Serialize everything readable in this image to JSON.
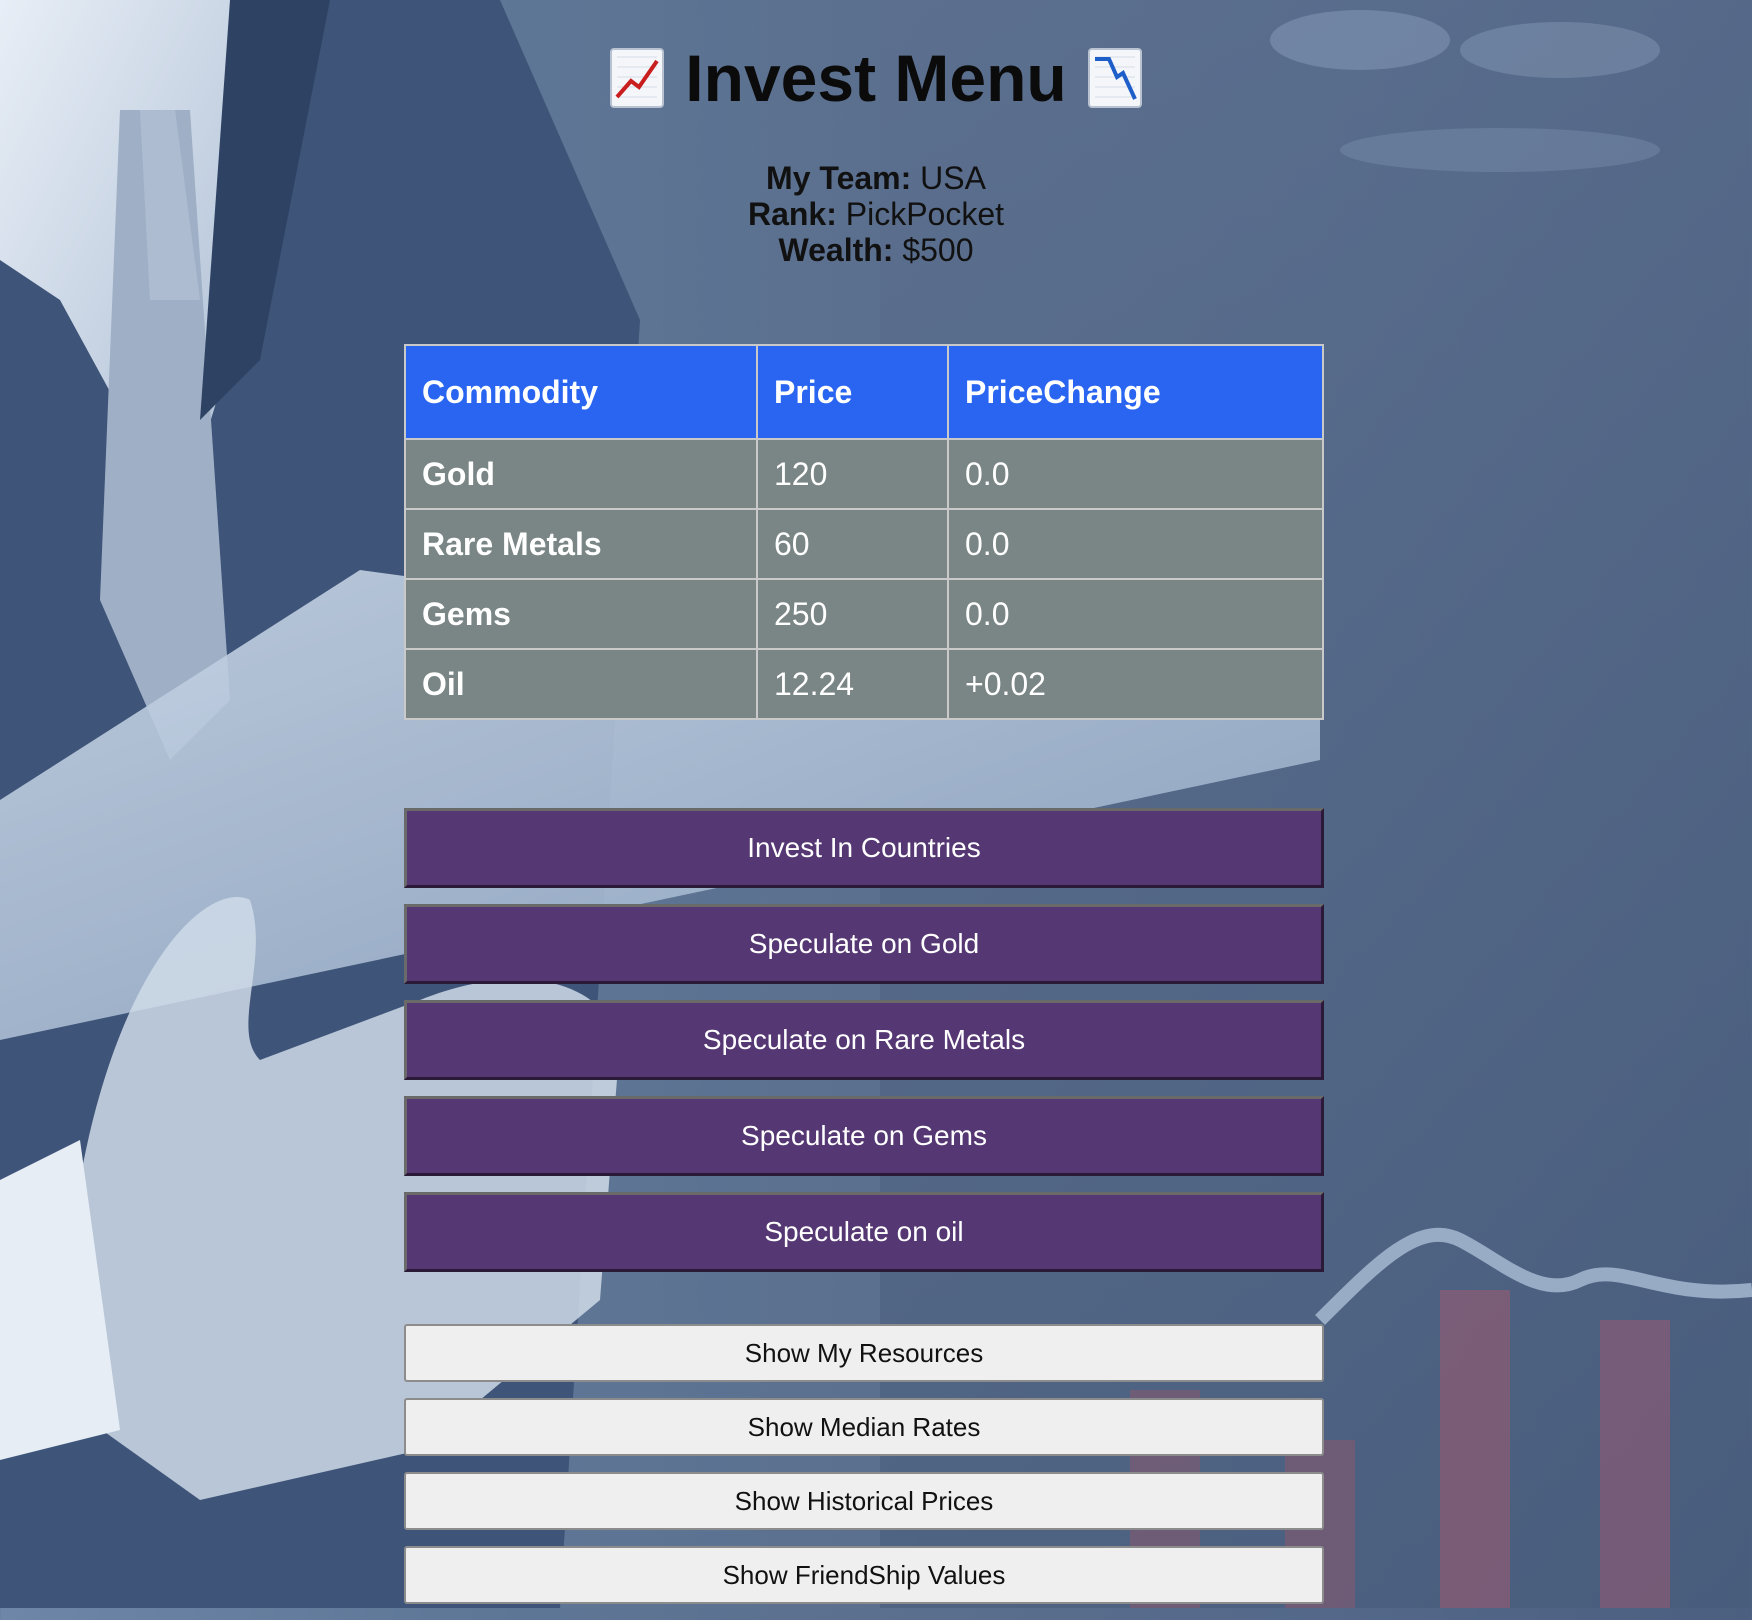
{
  "header": {
    "title": "Invest Menu",
    "left_icon": "chart-increasing-icon",
    "right_icon": "chart-decreasing-icon"
  },
  "team_info": {
    "team_label": "My Team:",
    "team_value": "USA",
    "rank_label": "Rank:",
    "rank_value": "PickPocket",
    "wealth_label": "Wealth:",
    "wealth_value": "$500"
  },
  "table": {
    "headers": [
      "Commodity",
      "Price",
      "PriceChange"
    ],
    "rows": [
      {
        "commodity": "Gold",
        "price": "120",
        "change": "0.0"
      },
      {
        "commodity": "Rare Metals",
        "price": "60",
        "change": "0.0"
      },
      {
        "commodity": "Gems",
        "price": "250",
        "change": "0.0"
      },
      {
        "commodity": "Oil",
        "price": "12.24",
        "change": "+0.02"
      }
    ]
  },
  "actions": [
    "Invest In Countries",
    "Speculate on Gold",
    "Speculate on Rare Metals",
    "Speculate on Gems",
    "Speculate on oil"
  ],
  "info_buttons": [
    "Show My Resources",
    "Show Median Rates",
    "Show Historical Prices",
    "Show FriendShip Values"
  ],
  "colors": {
    "header_bg": "#2965f1",
    "row_bg": "#7a8585",
    "action_bg": "#553773",
    "info_bg": "#efefef"
  }
}
